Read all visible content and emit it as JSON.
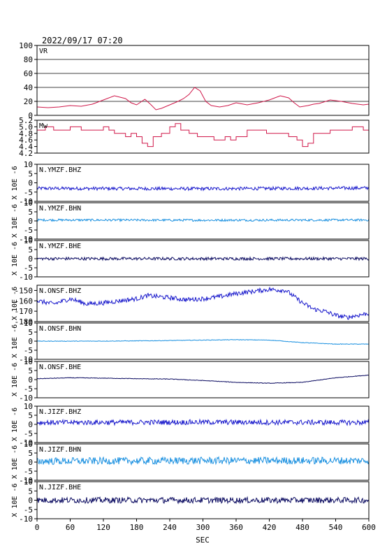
{
  "header": {
    "title": "2022/09/17 07:20"
  },
  "colors": {
    "vr": "#d0184a",
    "mw": "#d0184a",
    "bhz": "#1a1acc",
    "bhn": "#1a90e0",
    "bhe": "#0a0a60",
    "axis": "#000000"
  },
  "chart_data": {
    "type": "line",
    "xlabel": "SEC",
    "xlim": [
      0,
      600
    ],
    "xticks": [
      "0",
      "60",
      "120",
      "180",
      "240",
      "300",
      "360",
      "420",
      "480",
      "540",
      "600"
    ],
    "panels": [
      {
        "id": "vr",
        "label": "VR",
        "ylabel": "",
        "ylim": [
          0,
          100
        ],
        "yticks": [
          "100",
          "80",
          "60",
          "40",
          "20",
          "0"
        ],
        "grid": true,
        "color_key": "vr",
        "series": {
          "x": [
            0,
            20,
            40,
            60,
            80,
            100,
            120,
            140,
            160,
            170,
            180,
            195,
            205,
            215,
            225,
            240,
            255,
            265,
            275,
            285,
            295,
            305,
            315,
            330,
            345,
            360,
            380,
            400,
            420,
            430,
            440,
            455,
            465,
            475,
            490,
            500,
            510,
            530,
            550,
            570,
            590,
            600
          ],
          "y": [
            12,
            11,
            12,
            14,
            13,
            16,
            22,
            28,
            24,
            18,
            15,
            23,
            16,
            8,
            10,
            15,
            20,
            24,
            30,
            40,
            35,
            20,
            14,
            12,
            14,
            18,
            15,
            18,
            22,
            25,
            28,
            25,
            18,
            12,
            14,
            16,
            17,
            22,
            20,
            17,
            15,
            16
          ]
        }
      },
      {
        "id": "mw",
        "label": "Mw",
        "ylabel": "",
        "ylim": [
          4.2,
          5.2
        ],
        "yticks": [
          "5.2",
          "5.0",
          "4.8",
          "4.6",
          "4.4",
          "4.2"
        ],
        "grid": false,
        "color_key": "mw",
        "series": {
          "x": [
            0,
            15,
            30,
            50,
            60,
            80,
            100,
            120,
            130,
            140,
            160,
            170,
            180,
            190,
            200,
            210,
            225,
            240,
            250,
            260,
            275,
            290,
            300,
            320,
            340,
            350,
            360,
            380,
            400,
            415,
            430,
            440,
            455,
            470,
            480,
            490,
            500,
            515,
            530,
            550,
            570,
            590,
            600
          ],
          "y": [
            4.9,
            5.0,
            4.9,
            4.9,
            5.0,
            4.9,
            4.9,
            5.0,
            4.9,
            4.8,
            4.7,
            4.8,
            4.7,
            4.5,
            4.4,
            4.7,
            4.8,
            5.0,
            5.1,
            4.9,
            4.8,
            4.7,
            4.7,
            4.6,
            4.7,
            4.6,
            4.7,
            4.9,
            4.9,
            4.8,
            4.8,
            4.8,
            4.7,
            4.6,
            4.4,
            4.5,
            4.8,
            4.8,
            4.9,
            4.9,
            5.0,
            4.9,
            5.0
          ]
        }
      },
      {
        "id": "ymzf-bhz",
        "label": "N.YMZF.BHZ",
        "ylabel": "X 10E -6",
        "ylim": [
          -10,
          10
        ],
        "yticks": [
          "10",
          "5",
          "0",
          "-5",
          "-10"
        ],
        "grid": false,
        "color_key": "bhz",
        "series": {
          "x": [
            0,
            300,
            600
          ],
          "y": [
            -3.0,
            -3.2,
            -2.8
          ]
        }
      },
      {
        "id": "ymzf-bhn",
        "label": "N.YMZF.BHN",
        "ylabel": "X 10E -6",
        "ylim": [
          -10,
          10
        ],
        "yticks": [
          "10",
          "5",
          "0",
          "-5",
          "-10"
        ],
        "grid": false,
        "color_key": "bhn",
        "series": {
          "x": [
            0,
            300,
            600
          ],
          "y": [
            0.5,
            0.4,
            0.5
          ]
        }
      },
      {
        "id": "ymzf-bhe",
        "label": "N.YMZF.BHE",
        "ylabel": "X 10E -6",
        "ylim": [
          -10,
          10
        ],
        "yticks": [
          "10",
          "5",
          "0",
          "-5",
          "-10"
        ],
        "grid": false,
        "color_key": "bhe",
        "series": {
          "x": [
            0,
            300,
            600
          ],
          "y": [
            0.0,
            0.0,
            0.0
          ]
        }
      },
      {
        "id": "onsf-bhz",
        "label": "N.ONSF.BHZ",
        "ylabel": "X 10E -6",
        "ylim": [
          -180,
          -145
        ],
        "yticks": [
          "-150",
          "-160",
          "-170",
          "-180"
        ],
        "grid": false,
        "color_key": "bhz",
        "series": {
          "x": [
            0,
            30,
            60,
            90,
            120,
            150,
            180,
            200,
            240,
            270,
            300,
            330,
            360,
            390,
            420,
            450,
            470,
            480,
            500,
            520,
            540,
            560,
            580,
            600
          ],
          "y": [
            -160,
            -163,
            -158,
            -163,
            -162,
            -160,
            -158,
            -155,
            -157,
            -159,
            -158,
            -156,
            -153,
            -151,
            -149,
            -150,
            -158,
            -162,
            -168,
            -170,
            -174,
            -176,
            -174,
            -172
          ]
        }
      },
      {
        "id": "onsf-bhn",
        "label": "N.ONSF.BHN",
        "ylabel": "X 10E -6",
        "ylim": [
          -10,
          10
        ],
        "yticks": [
          "10",
          "5",
          "0",
          "-5",
          "-10"
        ],
        "grid": false,
        "color_key": "bhn",
        "series": {
          "x": [
            0,
            100,
            200,
            300,
            360,
            420,
            480,
            540,
            600
          ],
          "y": [
            0.0,
            0.0,
            0.2,
            0.6,
            0.8,
            0.6,
            -0.8,
            -1.6,
            -1.6
          ]
        }
      },
      {
        "id": "onsf-bhe",
        "label": "N.ONSF.BHE",
        "ylabel": "X 10E -6",
        "ylim": [
          -10,
          10
        ],
        "yticks": [
          "10",
          "5",
          "0",
          "-5",
          "-10"
        ],
        "grid": false,
        "color_key": "bhe",
        "series": {
          "x": [
            0,
            60,
            120,
            180,
            240,
            300,
            360,
            420,
            480,
            540,
            600
          ],
          "y": [
            0.5,
            1.0,
            0.8,
            0.5,
            0.3,
            -0.5,
            -1.5,
            -2.0,
            -1.5,
            1.0,
            2.5
          ]
        }
      },
      {
        "id": "jizf-bhz",
        "label": "N.JIZF.BHZ",
        "ylabel": "X 10E -6",
        "ylim": [
          -10,
          10
        ],
        "yticks": [
          "10",
          "5",
          "0",
          "-5",
          "-10"
        ],
        "grid": false,
        "color_key": "bhz",
        "series": {
          "x": [
            0,
            300,
            600
          ],
          "y": [
            1.0,
            1.2,
            1.0
          ]
        }
      },
      {
        "id": "jizf-bhn",
        "label": "N.JIZF.BHN",
        "ylabel": "X 10E -6",
        "ylim": [
          -10,
          10
        ],
        "yticks": [
          "10",
          "5",
          "0",
          "-5",
          "-10"
        ],
        "grid": false,
        "color_key": "bhn",
        "series": {
          "x": [
            0,
            300,
            600
          ],
          "y": [
            0.5,
            0.8,
            0.8
          ]
        }
      },
      {
        "id": "jizf-bhe",
        "label": "N.JIZF.BHE",
        "ylabel": "X 10E -6",
        "ylim": [
          -10,
          10
        ],
        "yticks": [
          "10",
          "5",
          "0",
          "-5",
          "-10"
        ],
        "grid": false,
        "color_key": "bhe",
        "series": {
          "x": [
            0,
            300,
            600
          ],
          "y": [
            0.0,
            0.0,
            0.0
          ]
        }
      }
    ]
  }
}
